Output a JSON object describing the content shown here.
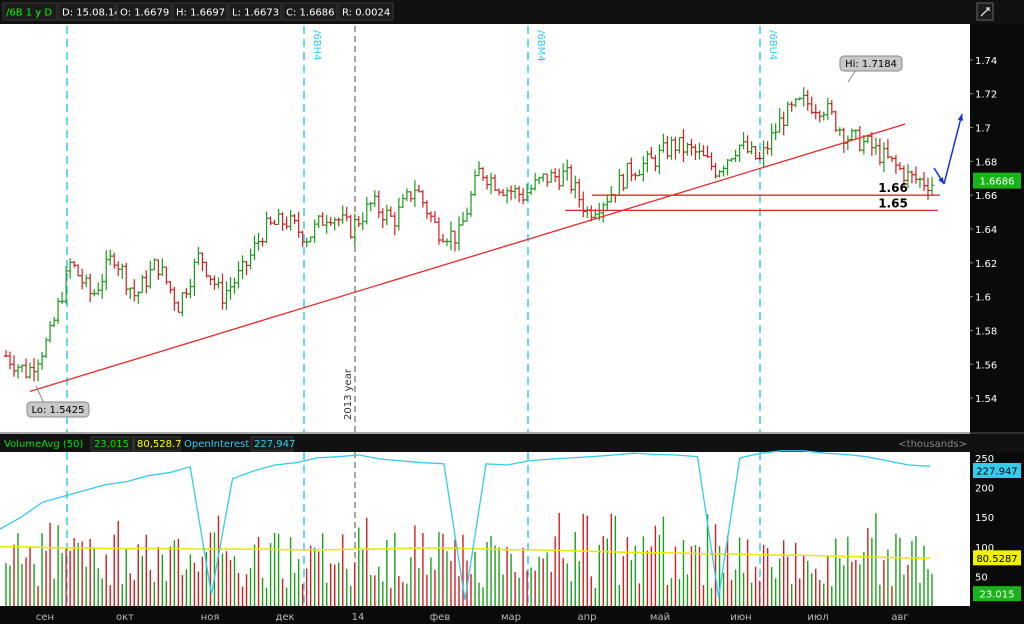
{
  "header": {
    "symbol": "/6B 1 y D",
    "date": "D: 15.08.14",
    "open": "O: 1.6679",
    "high": "H: 1.6697",
    "low": "L: 1.6673",
    "close": "C: 1.6686",
    "range": "R: 0.0024"
  },
  "chart_data": {
    "type": "bar",
    "price_axis": {
      "ylim": [
        1.52,
        1.76
      ],
      "ticks": [
        "1.74",
        "1.72",
        "1.7",
        "1.68",
        "1.66",
        "1.64",
        "1.62",
        "1.6",
        "1.58",
        "1.56",
        "1.54"
      ],
      "last_price": "1.6686"
    },
    "markers": {
      "hi_label": "Hi: 1.7184",
      "lo_label": "Lo: 1.5425",
      "hi_value": 1.7184,
      "lo_value": 1.5425
    },
    "contract_rolls": [
      "/6BH4",
      "/6BM4",
      "/6BU4"
    ],
    "year_marker": "2013 year",
    "levels": [
      {
        "label": "1.66",
        "value": 1.66
      },
      {
        "label": "1.65",
        "value": 1.651
      }
    ],
    "trendline": {
      "from": [
        0,
        1.544
      ],
      "to": [
        1,
        1.702
      ]
    },
    "months": [
      "сен",
      "окт",
      "ноя",
      "дек",
      "14",
      "фев",
      "мар",
      "апр",
      "май",
      "июн",
      "июл",
      "авг"
    ],
    "price_series": [
      1.565,
      1.555,
      1.575,
      1.62,
      1.6,
      1.625,
      1.6,
      1.62,
      1.595,
      1.625,
      1.6,
      1.615,
      1.64,
      1.645,
      1.635,
      1.65,
      1.64,
      1.655,
      1.645,
      1.665,
      1.64,
      1.635,
      1.675,
      1.665,
      1.66,
      1.67,
      1.672,
      1.65,
      1.66,
      1.675,
      1.68,
      1.69,
      1.685,
      1.675,
      1.69,
      1.68,
      1.705,
      1.715,
      1.712,
      1.695,
      1.69,
      1.68,
      1.67,
      1.667
    ],
    "volume_panel": {
      "indicator_label": "VolumeAvg (50)",
      "volume_value": "23,015",
      "avg_value": "80,528.7",
      "oi_label": "OpenInterest",
      "oi_value": "227,947",
      "units": "<thousands>",
      "ticks": [
        "250",
        "200",
        "150",
        "100",
        "50"
      ],
      "ylim": [
        0,
        260
      ],
      "badges": {
        "oi": "227.947",
        "avg": "80.5287",
        "vol": "23.015"
      },
      "open_interest": [
        130,
        150,
        175,
        185,
        195,
        205,
        210,
        220,
        225,
        235,
        20,
        215,
        228,
        238,
        242,
        250,
        252,
        255,
        248,
        245,
        242,
        240,
        10,
        240,
        238,
        245,
        248,
        250,
        252,
        255,
        258,
        256,
        255,
        252,
        15,
        250,
        258,
        262,
        262,
        258,
        256,
        252,
        245,
        238,
        236
      ],
      "avg_line": [
        100,
        100,
        99,
        98,
        98,
        97,
        97,
        97,
        97,
        96,
        96,
        96,
        96,
        95,
        95,
        95,
        96,
        96,
        97,
        98,
        98,
        97,
        96,
        95,
        95,
        94,
        93,
        92,
        91,
        90,
        90,
        89,
        88,
        88,
        87,
        86,
        86,
        85,
        84,
        83,
        82,
        81,
        80.5
      ]
    }
  }
}
